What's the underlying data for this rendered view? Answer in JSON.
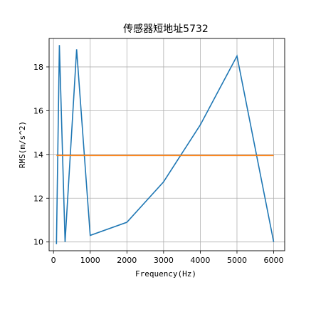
{
  "chart_data": {
    "type": "line",
    "title": "传感器短地址5732",
    "xlabel": "Frequency(Hz)",
    "ylabel": "RMS(m/s^2)",
    "xlim": [
      -120,
      6300
    ],
    "ylim": [
      9.6,
      19.3
    ],
    "xticks": [
      0,
      1000,
      2000,
      3000,
      4000,
      5000,
      6000
    ],
    "yticks": [
      10,
      12,
      14,
      16,
      18
    ],
    "grid": true,
    "series": [
      {
        "color": "#1f77b4",
        "x": [
          80,
          160,
          315,
          630,
          1000,
          2000,
          3000,
          4000,
          5000,
          6000
        ],
        "y": [
          9.9,
          19.0,
          10.0,
          18.8,
          10.3,
          10.9,
          12.75,
          15.35,
          18.5,
          10.0
        ]
      },
      {
        "color": "#ff7f0e",
        "x": [
          80,
          6000
        ],
        "y": [
          13.95,
          13.95
        ]
      }
    ]
  }
}
